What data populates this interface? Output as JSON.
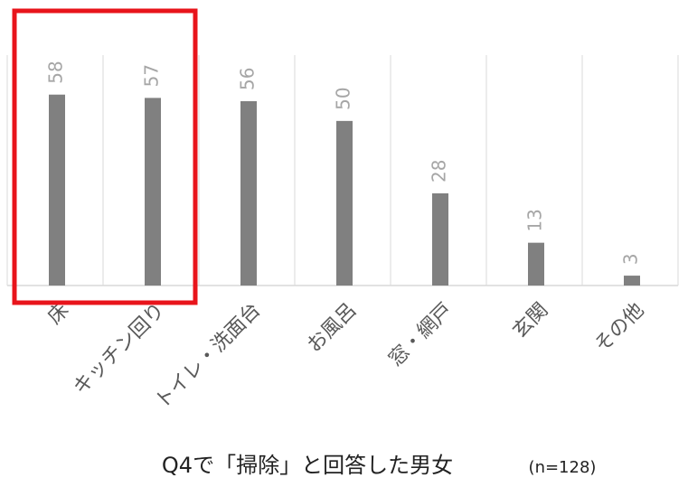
{
  "chart_data": {
    "type": "bar",
    "title": "Q4で「掃除」と回答した男女",
    "subtitle": "(n=128)",
    "categories": [
      "床",
      "キッチン回り",
      "トイレ・洗面台",
      "お風呂",
      "窓・網戸",
      "玄関",
      "その他"
    ],
    "values": [
      58,
      57,
      56,
      50,
      28,
      13,
      3
    ],
    "color": "#808080",
    "ylim": [
      0,
      70
    ]
  }
}
